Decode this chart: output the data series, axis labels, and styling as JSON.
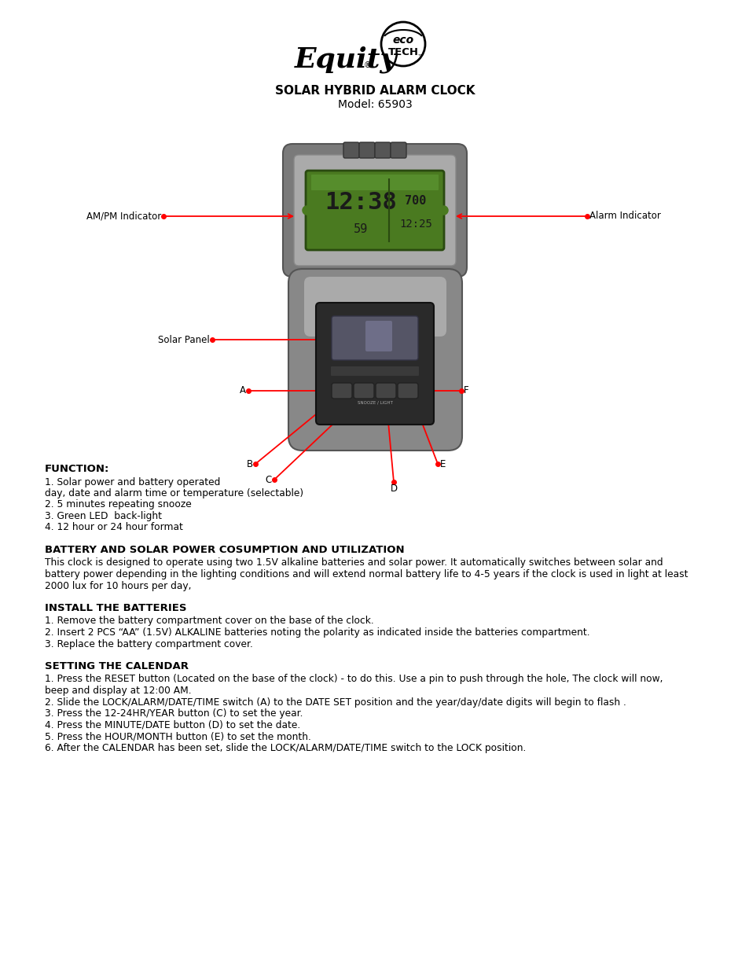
{
  "bg_color": "#ffffff",
  "title1": "SOLAR HYBRID ALARM CLOCK",
  "title2": "Model: 65903",
  "label_ampm": "AM/PM Indicator",
  "label_alarm": "Alarm Indicator",
  "label_solar": "Solar Panel",
  "label_a": "A",
  "label_b": "B",
  "label_c": "C",
  "label_d": "D",
  "label_e": "E",
  "label_f": "F",
  "section1_head": "FUNCTION:",
  "section1_body": "1. Solar power and battery operated\nday, date and alarm time or temperature (selectable)\n2. 5 minutes repeating snooze\n3. Green LED  back-light\n4. 12 hour or 24 hour format",
  "section2_head": "BATTERY AND SOLAR POWER COSUMPTION AND UTILIZATION",
  "section2_body": "This clock is designed to operate using two 1.5V alkaline batteries and solar power. It automatically switches between solar and\nbattery power depending in the lighting conditions and will extend normal battery life to 4-5 years if the clock is used in light at least\n2000 lux for 10 hours per day,",
  "section3_head": "INSTALL THE BATTERIES",
  "section3_body": "1. Remove the battery compartment cover on the base of the clock.\n2. Insert 2 PCS “AA” (1.5V) ALKALINE batteries noting the polarity as indicated inside the batteries compartment.\n3. Replace the battery compartment cover.",
  "section4_head": "SETTING THE CALENDAR",
  "section4_body": "1. Press the RESET button (Located on the base of the clock) - to do this. Use a pin to push through the hole, The clock will now,\nbeep and display at 12:00 AM.\n2. Slide the LOCK/ALARM/DATE/TIME switch (A) to the DATE SET position and the year/day/date digits will begin to flash .\n3. Press the 12-24HR/YEAR button (C) to set the year.\n4. Press the MINUTE/DATE button (D) to set the date.\n5. Press the HOUR/MONTH button (E) to set the month.\n6. After the CALENDAR has been set, slide the LOCK/ALARM/DATE/TIME switch to the LOCK position."
}
